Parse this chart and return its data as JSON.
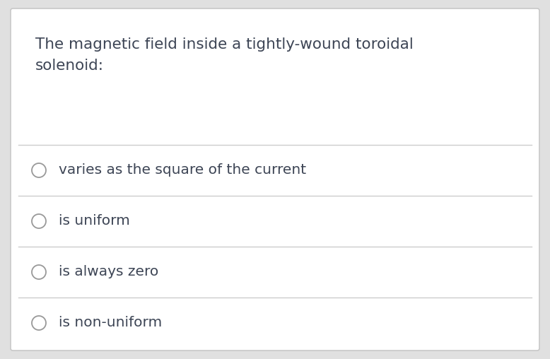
{
  "question_line1": "The magnetic field inside a tightly-wound toroidal",
  "question_line2": "solenoid:",
  "options": [
    "varies as the square of the current",
    "is uniform",
    "is always zero",
    "is non-uniform"
  ],
  "background_color": "#ffffff",
  "border_color": "#c8c8c8",
  "outer_bg_color": "#e0e0e0",
  "question_color": "#3d4555",
  "option_color": "#3d4555",
  "divider_color": "#cccccc",
  "circle_edge_color": "#999999",
  "question_fontsize": 15.5,
  "option_fontsize": 14.5,
  "figsize": [
    7.78,
    5.08
  ],
  "dpi": 100
}
